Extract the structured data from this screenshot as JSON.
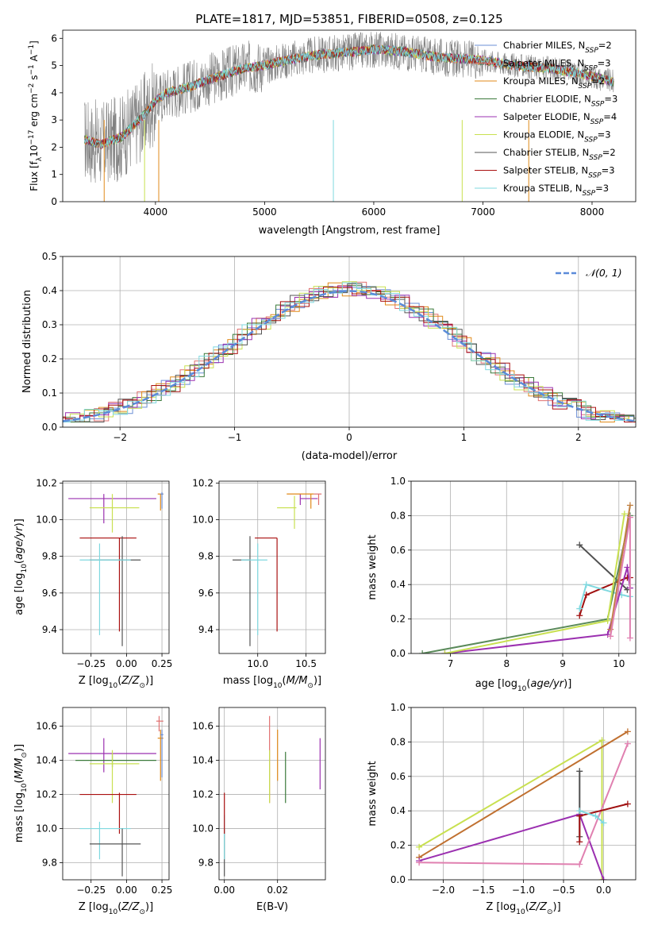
{
  "figure_title": "PLATE=1817, MJD=53851, FIBERID=0508, z=0.125",
  "colors": {
    "chabrier_miles": "#6b8fd6",
    "salpeter_miles": "#e07070",
    "kroupa_miles": "#e08a1a",
    "chabrier_elodie": "#3a7a3a",
    "salpeter_elodie": "#9b30b0",
    "kroupa_elodie": "#c8e050",
    "chabrier_stelib": "#555555",
    "salpeter_stelib": "#aa1010",
    "kroupa_stelib": "#7fd8df",
    "mw_gray": "#505050",
    "mw_darkred": "#a01010",
    "mw_cyan": "#7fd8df",
    "mw_purple": "#9b30b0",
    "mw_green": "#5a8a5a",
    "mw_lime": "#c8e050",
    "mw_orange": "#c08040",
    "mw_pink": "#e080b0",
    "mw_darkorange": "#c07030",
    "spectrum_gray": "#808080",
    "grid": "#b0b0b0",
    "gauss": "#5b8bd9"
  },
  "chart_data": [
    {
      "id": "spectrum",
      "type": "line",
      "title": "PLATE=1817, MJD=53851, FIBERID=0508, z=0.125",
      "xlabel": "wavelength [Angstrom, rest frame]",
      "ylabel": "Flux [f_λ 10^-17 erg cm^-2 s^-1 A^-1]",
      "xlim": [
        3150,
        8400
      ],
      "ylim": [
        0,
        6.3
      ],
      "xticks": [
        4000,
        5000,
        6000,
        7000,
        8000
      ],
      "yticks": [
        0,
        1,
        2,
        3,
        4,
        5,
        6
      ],
      "legend": [
        "Chabrier MILES, N_SSP=2",
        "Salpeter MILES, N_SSP=3",
        "Kroupa MILES, N_SSP=2",
        "Chabrier ELODIE, N_SSP=3",
        "Salpeter ELODIE, N_SSP=4",
        "Kroupa ELODIE, N_SSP=3",
        "Chabrier STELIB, N_SSP=2",
        "Salpeter STELIB, N_SSP=3",
        "Kroupa STELIB, N_SSP=3"
      ],
      "legend_placement": "right",
      "model_curve": {
        "x": [
          3350,
          3500,
          3700,
          3900,
          4000,
          4100,
          4300,
          4500,
          4800,
          5000,
          5200,
          5500,
          5800,
          6000,
          6300,
          6600,
          7000,
          7300,
          7600,
          7900,
          8200
        ],
        "y": [
          2.3,
          2.1,
          2.4,
          3.2,
          3.7,
          4.0,
          4.2,
          4.5,
          4.9,
          5.0,
          5.2,
          5.4,
          5.5,
          5.6,
          5.5,
          5.3,
          5.2,
          5.0,
          4.9,
          4.7,
          4.4
        ]
      }
    },
    {
      "id": "residuals",
      "type": "line",
      "xlabel": "(data-model)/error",
      "ylabel": "Normed distribution",
      "xlim": [
        -2.5,
        2.5
      ],
      "ylim": [
        0,
        0.5
      ],
      "xticks": [
        -2,
        -1,
        0,
        1,
        2
      ],
      "xtick_labels": [
        "−2",
        "−1",
        "0",
        "1",
        "2"
      ],
      "yticks": [
        0.0,
        0.1,
        0.2,
        0.3,
        0.4,
        0.5
      ],
      "ytick_labels": [
        "0.0",
        "0.1",
        "0.2",
        "0.3",
        "0.4",
        "0.5"
      ],
      "legend": [
        "𝒩(0, 1)"
      ],
      "legend_placement": "top-right",
      "grid": true
    },
    {
      "id": "age_vs_Z",
      "type": "scatter",
      "xlabel": "Z [log10(Z/Z⊙)]",
      "ylabel": "age [log10(age/yr)]",
      "xlim": [
        -0.45,
        0.3
      ],
      "ylim": [
        9.27,
        10.21
      ],
      "xticks": [
        -0.25,
        0.0,
        0.25
      ],
      "xtick_labels": [
        "−0.25",
        "0.00",
        "0.25"
      ],
      "yticks": [
        9.4,
        9.6,
        9.8,
        10.0,
        10.2
      ],
      "ytick_labels": [
        "9.4",
        "9.6",
        "9.8",
        "10.0",
        "10.2"
      ],
      "points": [
        {
          "c": "salpeter_elodie",
          "x": -0.16,
          "xl": -0.41,
          "xh": 0.21,
          "y": 10.115,
          "yl": 9.98,
          "yh": 10.14
        },
        {
          "c": "kroupa_elodie",
          "x": -0.1,
          "xl": -0.26,
          "xh": 0.09,
          "y": 10.065,
          "yl": 9.93,
          "yh": 10.14
        },
        {
          "c": "kroupa_miles",
          "x": 0.24,
          "xl": 0.22,
          "xh": 0.26,
          "y": 10.14,
          "yl": 10.05,
          "yh": 10.14
        },
        {
          "c": "chabrier_miles",
          "x": 0.25,
          "xl": 0.24,
          "xh": 0.26,
          "y": 10.14,
          "yl": 10.06,
          "yh": 10.15
        },
        {
          "c": "salpeter_stelib",
          "x": -0.05,
          "xl": -0.33,
          "xh": 0.07,
          "y": 9.9,
          "yl": 9.39,
          "yh": 9.9
        },
        {
          "c": "chabrier_stelib",
          "x": -0.03,
          "xl": -0.26,
          "xh": 0.1,
          "y": 9.78,
          "yl": 9.31,
          "yh": 9.91
        },
        {
          "c": "kroupa_stelib",
          "x": -0.19,
          "xl": -0.33,
          "xh": 0.03,
          "y": 9.78,
          "yl": 9.37,
          "yh": 9.87
        }
      ]
    },
    {
      "id": "age_vs_mass",
      "type": "scatter",
      "xlabel": "mass [log10(M/M⊙)]",
      "ylabel": "",
      "xlim": [
        9.6,
        10.7
      ],
      "ylim": [
        9.27,
        10.21
      ],
      "xticks": [
        10.0,
        10.5
      ],
      "xtick_labels": [
        "10.0",
        "10.5"
      ],
      "yticks": [
        9.4,
        9.6,
        9.8,
        10.0,
        10.2
      ],
      "ytick_labels": [
        "9.4",
        "9.6",
        "9.8",
        "10.0",
        "10.2"
      ],
      "points": [
        {
          "c": "salpeter_elodie",
          "x": 10.44,
          "xl": 10.44,
          "xh": 10.62,
          "y": 10.115,
          "yl": 10.08,
          "yh": 10.14
        },
        {
          "c": "kroupa_elodie",
          "x": 10.38,
          "xl": 10.2,
          "xh": 10.4,
          "y": 10.065,
          "yl": 9.95,
          "yh": 10.13
        },
        {
          "c": "kroupa_miles",
          "x": 10.55,
          "xl": 10.3,
          "xh": 10.58,
          "y": 10.14,
          "yl": 10.06,
          "yh": 10.14
        },
        {
          "c": "salpeter_miles",
          "x": 10.63,
          "xl": 10.58,
          "xh": 10.66,
          "y": 10.14,
          "yl": 10.08,
          "yh": 10.14
        },
        {
          "c": "salpeter_stelib",
          "x": 10.2,
          "xl": 9.97,
          "xh": 10.2,
          "y": 9.9,
          "yl": 9.39,
          "yh": 9.9
        },
        {
          "c": "chabrier_stelib",
          "x": 9.92,
          "xl": 9.74,
          "xh": 9.92,
          "y": 9.78,
          "yl": 9.31,
          "yh": 9.91
        },
        {
          "c": "kroupa_stelib",
          "x": 10.0,
          "xl": 9.83,
          "xh": 10.1,
          "y": 9.78,
          "yl": 9.37,
          "yh": 9.87
        }
      ]
    },
    {
      "id": "mw_vs_age",
      "type": "line",
      "xlabel": "age [log10(age/yr)]",
      "ylabel": "mass weight",
      "xlim": [
        6.3,
        10.3
      ],
      "ylim": [
        0,
        1
      ],
      "xticks": [
        7,
        8,
        9,
        10
      ],
      "yticks": [
        0.0,
        0.2,
        0.4,
        0.6,
        0.8,
        1.0
      ],
      "ytick_labels": [
        "0.0",
        "0.2",
        "0.4",
        "0.6",
        "0.8",
        "1.0"
      ],
      "grid": true,
      "series": [
        {
          "c": "mw_gray",
          "x": [
            9.3,
            10.15
          ],
          "y": [
            0.63,
            0.37
          ]
        },
        {
          "c": "mw_darkred",
          "x": [
            9.3,
            9.42,
            10.15,
            10.2
          ],
          "y": [
            0.22,
            0.34,
            0.44,
            0.44
          ]
        },
        {
          "c": "mw_cyan",
          "x": [
            9.3,
            9.42,
            10.05,
            10.2
          ],
          "y": [
            0.26,
            0.4,
            0.34,
            0.33
          ]
        },
        {
          "c": "mw_green",
          "x": [
            6.5,
            9.8,
            10.2
          ],
          "y": [
            0.0,
            0.2,
            0.8
          ]
        },
        {
          "c": "mw_purple",
          "x": [
            6.9,
            9.8,
            10.15,
            10.2
          ],
          "y": [
            0.0,
            0.11,
            0.5,
            0.38
          ]
        },
        {
          "c": "mw_lime",
          "x": [
            6.9,
            9.8,
            10.1
          ],
          "y": [
            0.0,
            0.19,
            0.81
          ]
        },
        {
          "c": "mw_orange",
          "x": [
            9.85,
            10.2
          ],
          "y": [
            0.14,
            0.86
          ]
        },
        {
          "c": "mw_pink",
          "x": [
            9.85,
            10.2,
            10.2
          ],
          "y": [
            0.1,
            0.79,
            0.09
          ]
        }
      ]
    },
    {
      "id": "mass_vs_Z",
      "type": "scatter",
      "xlabel": "Z [log10(Z/Z⊙)]",
      "ylabel": "mass [log10(M/M⊙)]",
      "xlim": [
        -0.45,
        0.3
      ],
      "ylim": [
        9.7,
        10.71
      ],
      "xticks": [
        -0.25,
        0.0,
        0.25
      ],
      "xtick_labels": [
        "−0.25",
        "0.00",
        "0.25"
      ],
      "yticks": [
        9.8,
        10.0,
        10.2,
        10.4,
        10.6
      ],
      "ytick_labels": [
        "9.8",
        "10.0",
        "10.2",
        "10.4",
        "10.6"
      ],
      "points": [
        {
          "c": "salpeter_elodie",
          "x": -0.16,
          "xl": -0.41,
          "xh": 0.21,
          "y": 10.44,
          "yl": 10.33,
          "yh": 10.53
        },
        {
          "c": "chabrier_elodie",
          "x": -0.1,
          "xl": -0.36,
          "xh": 0.21,
          "y": 10.4,
          "yl": 10.36,
          "yh": 10.44
        },
        {
          "c": "kroupa_elodie",
          "x": -0.1,
          "xl": -0.26,
          "xh": 0.09,
          "y": 10.38,
          "yl": 10.15,
          "yh": 10.46
        },
        {
          "c": "salpeter_miles",
          "x": 0.23,
          "xl": 0.21,
          "xh": 0.26,
          "y": 10.63,
          "yl": 10.57,
          "yh": 10.66
        },
        {
          "c": "kroupa_miles",
          "x": 0.24,
          "xl": 0.22,
          "xh": 0.26,
          "y": 10.53,
          "yl": 10.28,
          "yh": 10.58
        },
        {
          "c": "chabrier_miles",
          "x": 0.25,
          "xl": 0.24,
          "xh": 0.26,
          "y": 10.55,
          "yl": 10.3,
          "yh": 10.58
        },
        {
          "c": "salpeter_stelib",
          "x": -0.05,
          "xl": -0.33,
          "xh": 0.07,
          "y": 10.2,
          "yl": 9.97,
          "yh": 10.21
        },
        {
          "c": "kroupa_stelib",
          "x": -0.19,
          "xl": -0.33,
          "xh": 0.03,
          "y": 10.0,
          "yl": 9.82,
          "yh": 10.04
        },
        {
          "c": "chabrier_stelib",
          "x": -0.03,
          "xl": -0.26,
          "xh": 0.1,
          "y": 9.91,
          "yl": 9.72,
          "yh": 10.0
        }
      ]
    },
    {
      "id": "mass_vs_ebv",
      "type": "scatter",
      "xlabel": "E(B-V)",
      "ylabel": "",
      "xlim": [
        -0.002,
        0.038
      ],
      "ylim": [
        9.7,
        10.71
      ],
      "xticks": [
        0.0,
        0.02
      ],
      "xtick_labels": [
        "0.00",
        "0.02"
      ],
      "yticks": [
        9.8,
        10.0,
        10.2,
        10.4,
        10.6
      ],
      "ytick_labels": [
        "9.8",
        "10.0",
        "10.2",
        "10.4",
        "10.6"
      ],
      "points": [
        {
          "c": "chabrier_stelib",
          "x": 0.0,
          "xl": 0.0,
          "xh": 0.0,
          "y": 9.91,
          "yl": 9.72,
          "yh": 10.0
        },
        {
          "c": "kroupa_stelib",
          "x": 0.0,
          "xl": 0.0,
          "xh": 0.0,
          "y": 10.0,
          "yl": 9.82,
          "yh": 10.08
        },
        {
          "c": "salpeter_stelib",
          "x": 0.0,
          "xl": 0.0,
          "xh": 0.0,
          "y": 10.1,
          "yl": 9.97,
          "yh": 10.21
        },
        {
          "c": "salpeter_miles",
          "x": 0.017,
          "xl": 0.017,
          "xh": 0.017,
          "y": 10.4,
          "yl": 10.15,
          "yh": 10.66
        },
        {
          "c": "kroupa_elodie",
          "x": 0.017,
          "xl": 0.017,
          "xh": 0.017,
          "y": 10.38,
          "yl": 10.15,
          "yh": 10.46
        },
        {
          "c": "kroupa_miles",
          "x": 0.02,
          "xl": 0.02,
          "xh": 0.02,
          "y": 10.43,
          "yl": 10.28,
          "yh": 10.58
        },
        {
          "c": "chabrier_elodie",
          "x": 0.023,
          "xl": 0.023,
          "xh": 0.023,
          "y": 10.3,
          "yl": 10.15,
          "yh": 10.45
        },
        {
          "c": "salpeter_elodie",
          "x": 0.036,
          "xl": 0.036,
          "xh": 0.036,
          "y": 10.38,
          "yl": 10.23,
          "yh": 10.53
        }
      ]
    },
    {
      "id": "mw_vs_Z",
      "type": "line",
      "xlabel": "Z [log10(Z/Z⊙)]",
      "ylabel": "mass weight",
      "xlim": [
        -2.4,
        0.4
      ],
      "ylim": [
        0,
        1
      ],
      "xticks": [
        -2.0,
        -1.5,
        -1.0,
        -0.5,
        0.0
      ],
      "xtick_labels": [
        "−2.0",
        "−1.5",
        "−1.0",
        "−0.5",
        "0.0"
      ],
      "yticks": [
        0.0,
        0.2,
        0.4,
        0.6,
        0.8,
        1.0
      ],
      "ytick_labels": [
        "0.0",
        "0.2",
        "0.4",
        "0.6",
        "0.8",
        "1.0"
      ],
      "grid": true,
      "series": [
        {
          "c": "mw_lime",
          "x": [
            -2.3,
            -0.02,
            -0.02
          ],
          "y": [
            0.19,
            0.81,
            0.0
          ]
        },
        {
          "c": "mw_darkorange",
          "x": [
            -2.3,
            0.3
          ],
          "y": [
            0.13,
            0.86
          ]
        },
        {
          "c": "mw_purple",
          "x": [
            -2.3,
            -0.3,
            0.0
          ],
          "y": [
            0.11,
            0.38,
            0.0
          ]
        },
        {
          "c": "mw_pink",
          "x": [
            -2.3,
            -0.3,
            0.3
          ],
          "y": [
            0.1,
            0.09,
            0.79
          ]
        },
        {
          "c": "mw_gray",
          "x": [
            -0.3,
            -0.3
          ],
          "y": [
            0.25,
            0.63
          ]
        },
        {
          "c": "mw_darkred",
          "x": [
            -0.3,
            -0.3,
            0.3
          ],
          "y": [
            0.22,
            0.37,
            0.44
          ]
        },
        {
          "c": "mw_cyan",
          "x": [
            -0.3,
            -0.1,
            0.0
          ],
          "y": [
            0.4,
            0.37,
            0.33
          ]
        }
      ]
    }
  ]
}
